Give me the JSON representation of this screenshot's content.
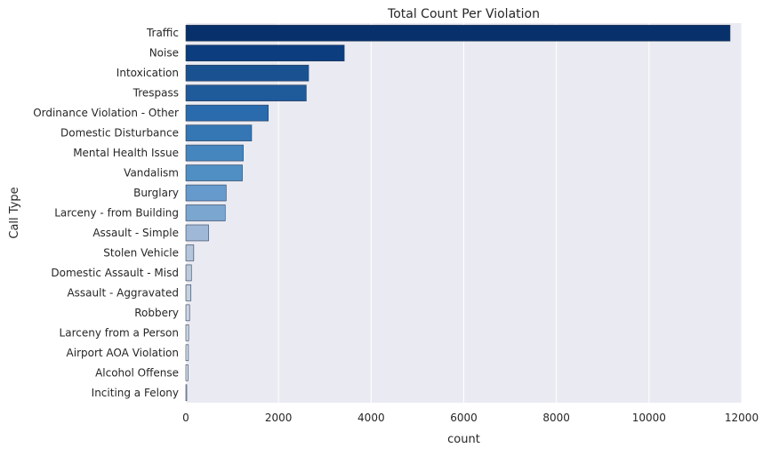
{
  "chart_data": {
    "type": "bar",
    "orientation": "horizontal",
    "title": "Total Count Per Violation",
    "xlabel": "count",
    "ylabel": "Call Type",
    "xlim": [
      0,
      12000
    ],
    "x_ticks": [
      0,
      2000,
      4000,
      6000,
      8000,
      10000,
      12000
    ],
    "grid": true,
    "background_color": "#EAEAF2",
    "categories": [
      "Traffic",
      "Noise",
      "Intoxication",
      "Trespass",
      "Ordinance Violation - Other",
      "Domestic Disturbance",
      "Mental Health Issue",
      "Vandalism",
      "Burglary",
      "Larceny - from Building",
      "Assault - Simple",
      "Stolen Vehicle",
      "Domestic Assault - Misd",
      "Assault - Aggravated",
      "Robbery",
      "Larceny from a Person",
      "Airport AOA Violation",
      "Alcohol Offense",
      "Inciting a Felony"
    ],
    "values": [
      11750,
      3420,
      2650,
      2600,
      1780,
      1420,
      1240,
      1220,
      870,
      850,
      490,
      170,
      120,
      110,
      80,
      60,
      55,
      45,
      10
    ],
    "colors": [
      "#08306B",
      "#0B3D7F",
      "#1A5291",
      "#1F5A9B",
      "#2A6BAE",
      "#3576B4",
      "#4686BF",
      "#4F8FC4",
      "#6699CC",
      "#7AA6D0",
      "#A0B8D8",
      "#B5C6DC",
      "#BECBDD",
      "#C6D1E0",
      "#CDD6E4",
      "#D3DBE7",
      "#D8DFEA",
      "#DCE2EC",
      "#E0E5EE"
    ]
  }
}
